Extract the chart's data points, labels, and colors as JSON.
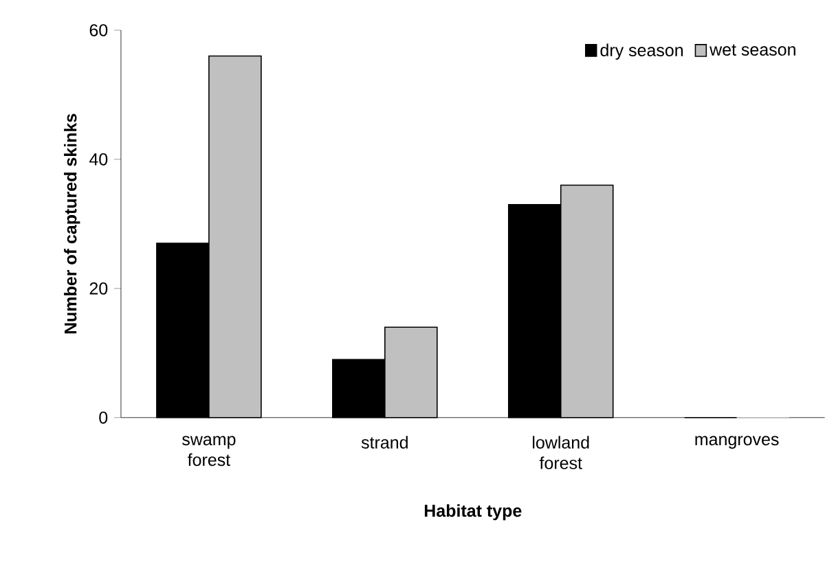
{
  "chart_data": {
    "type": "bar",
    "xlabel": "Habitat type",
    "ylabel": "Number of captured skinks",
    "categories": [
      "swamp forest",
      "strand",
      "lowland forest",
      "mangroves"
    ],
    "series": [
      {
        "name": "dry season",
        "color": "#000000",
        "values": [
          27,
          9,
          33,
          0
        ]
      },
      {
        "name": "wet season",
        "color": "#c0c0c0",
        "values": [
          56,
          14,
          36,
          0
        ]
      }
    ],
    "ylim": [
      0,
      60
    ],
    "yticks": [
      0,
      20,
      40,
      60
    ],
    "grid": false,
    "legend": "top right"
  }
}
